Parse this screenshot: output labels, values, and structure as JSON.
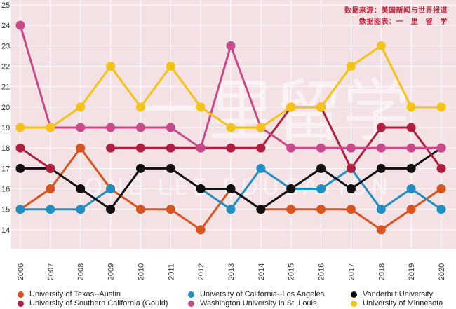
{
  "source": {
    "line1": "数据来源：美国新闻与世界报道",
    "line2": "数据图表：一　里　留　学"
  },
  "watermark": {
    "cn": "一里留学",
    "en": "ONE LEE EDUCATION"
  },
  "colors": {
    "plot_bg": "#f3e1e4",
    "grid": "#ffffff",
    "text": "#333333"
  },
  "chart_data": {
    "type": "line",
    "x": [
      "2006",
      "2007",
      "2008",
      "2009",
      "2010",
      "2011",
      "2012",
      "2013",
      "2014",
      "2015",
      "2016",
      "2017",
      "2018",
      "2019",
      "2020"
    ],
    "ylim": [
      13,
      25
    ],
    "yticks": [
      14,
      15,
      16,
      17,
      18,
      19,
      20,
      21,
      22,
      23,
      24,
      25
    ],
    "grid": true,
    "legend_position": "bottom",
    "series": [
      {
        "name": "University of Texas--Austin",
        "color": "#d9541e",
        "values": [
          15,
          16,
          18,
          16,
          15,
          15,
          14,
          16,
          15,
          15,
          15,
          15,
          14,
          15,
          16
        ]
      },
      {
        "name": "University of California--Los Angeles",
        "color": "#1f8fc4",
        "values": [
          15,
          15,
          15,
          16,
          null,
          null,
          16,
          15,
          17,
          16,
          16,
          17,
          15,
          16,
          15
        ]
      },
      {
        "name": "Vanderbilt University",
        "color": "#111111",
        "values": [
          17,
          17,
          16,
          15,
          17,
          17,
          16,
          16,
          15,
          16,
          17,
          16,
          17,
          17,
          18
        ]
      },
      {
        "name": "University of Southern California (Gould)",
        "color": "#b01f3f",
        "values": [
          18,
          17,
          null,
          18,
          18,
          18,
          18,
          18,
          18,
          20,
          20,
          17,
          19,
          19,
          17
        ]
      },
      {
        "name": "Washington University in St. Louis",
        "color": "#c94a8a",
        "values": [
          24,
          19,
          19,
          19,
          19,
          19,
          18,
          23,
          19,
          18,
          18,
          18,
          18,
          18,
          18
        ]
      },
      {
        "name": "University of Minnesota",
        "color": "#f3c316",
        "values": [
          19,
          19,
          20,
          22,
          20,
          22,
          20,
          19,
          19,
          20,
          20,
          22,
          23,
          20,
          20
        ]
      }
    ]
  }
}
